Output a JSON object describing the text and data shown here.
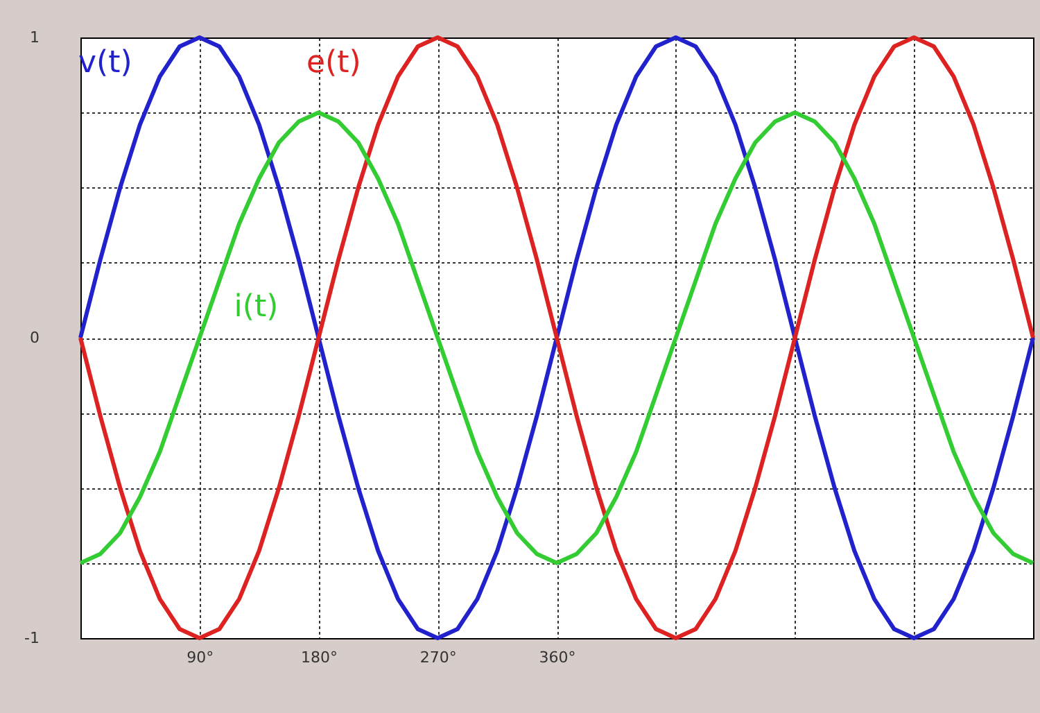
{
  "chart_data": {
    "type": "line",
    "x": [
      0,
      15,
      30,
      45,
      60,
      75,
      90,
      105,
      120,
      135,
      150,
      165,
      180,
      195,
      210,
      225,
      240,
      255,
      270,
      285,
      300,
      315,
      330,
      345,
      360,
      375,
      390,
      405,
      420,
      435,
      450,
      465,
      480,
      495,
      510,
      525,
      540,
      555,
      570,
      585,
      600,
      615,
      630,
      645,
      660,
      675,
      690,
      705,
      720
    ],
    "series": [
      {
        "name": "v(t)",
        "color": "#2222cc",
        "values": [
          0,
          0.26,
          0.5,
          0.71,
          0.87,
          0.97,
          1,
          0.97,
          0.87,
          0.71,
          0.5,
          0.26,
          0,
          -0.26,
          -0.5,
          -0.71,
          -0.87,
          -0.97,
          -1,
          -0.97,
          -0.87,
          -0.71,
          -0.5,
          -0.26,
          0,
          0.26,
          0.5,
          0.71,
          0.87,
          0.97,
          1,
          0.97,
          0.87,
          0.71,
          0.5,
          0.26,
          0,
          -0.26,
          -0.5,
          -0.71,
          -0.87,
          -0.97,
          -1,
          -0.97,
          -0.87,
          -0.71,
          -0.5,
          -0.26,
          0
        ]
      },
      {
        "name": "e(t)",
        "color": "#dd2222",
        "values": [
          0,
          -0.26,
          -0.5,
          -0.71,
          -0.87,
          -0.97,
          -1,
          -0.97,
          -0.87,
          -0.71,
          -0.5,
          -0.26,
          0,
          0.26,
          0.5,
          0.71,
          0.87,
          0.97,
          1,
          0.97,
          0.87,
          0.71,
          0.5,
          0.26,
          0,
          -0.26,
          -0.5,
          -0.71,
          -0.87,
          -0.97,
          -1,
          -0.97,
          -0.87,
          -0.71,
          -0.5,
          -0.26,
          0,
          0.26,
          0.5,
          0.71,
          0.87,
          0.97,
          1,
          0.97,
          0.87,
          0.71,
          0.5,
          0.26,
          0
        ]
      },
      {
        "name": "i(t)",
        "color": "#33cc33",
        "values": [
          -0.75,
          -0.72,
          -0.65,
          -0.53,
          -0.38,
          -0.19,
          0,
          0.19,
          0.38,
          0.53,
          0.65,
          0.72,
          0.75,
          0.72,
          0.65,
          0.53,
          0.38,
          0.19,
          0,
          -0.19,
          -0.38,
          -0.53,
          -0.65,
          -0.72,
          -0.75,
          -0.72,
          -0.65,
          -0.53,
          -0.38,
          -0.19,
          0,
          0.19,
          0.38,
          0.53,
          0.65,
          0.72,
          0.75,
          0.72,
          0.65,
          0.53,
          0.38,
          0.19,
          0,
          -0.19,
          -0.38,
          -0.53,
          -0.65,
          -0.72,
          -0.75
        ]
      }
    ],
    "xlim": [
      0,
      720
    ],
    "xticks": [
      {
        "value": 0,
        "label": null
      },
      {
        "value": 90,
        "label": "90°"
      },
      {
        "value": 180,
        "label": "180°"
      },
      {
        "value": 270,
        "label": "270°"
      },
      {
        "value": 360,
        "label": "360°"
      },
      {
        "value": 450,
        "label": null
      },
      {
        "value": 540,
        "label": null
      },
      {
        "value": 630,
        "label": null
      },
      {
        "value": 720,
        "label": null
      }
    ],
    "ylim": [
      -1,
      1
    ],
    "yticks": [
      {
        "value": -1,
        "label": "-1"
      },
      {
        "value": -0.75,
        "label": null
      },
      {
        "value": -0.5,
        "label": null
      },
      {
        "value": -0.25,
        "label": null
      },
      {
        "value": 0,
        "label": "0"
      },
      {
        "value": 0.25,
        "label": null
      },
      {
        "value": 0.5,
        "label": null
      },
      {
        "value": 0.75,
        "label": null
      },
      {
        "value": 1,
        "label": "1"
      }
    ],
    "grid": true,
    "legend": false,
    "marker": "none",
    "line_style": "solid"
  }
}
